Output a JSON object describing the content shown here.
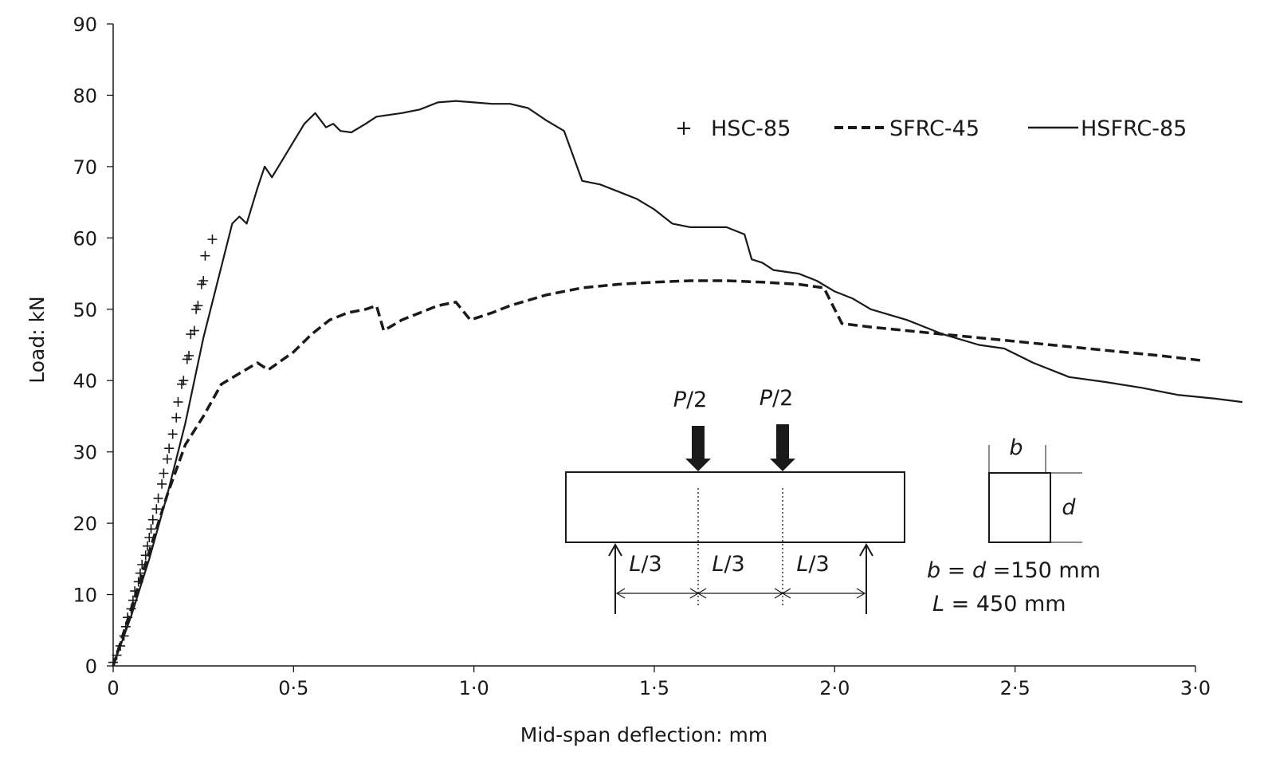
{
  "chart_data": {
    "type": "line",
    "xlabel": "Mid-span deflection: mm",
    "ylabel": "Load: kN",
    "xlim": [
      0,
      3.0
    ],
    "ylim": [
      0,
      90
    ],
    "x_ticks": [
      0,
      0.5,
      1.0,
      1.5,
      2.0,
      2.5,
      3.0
    ],
    "x_tick_labels": [
      "0",
      "0·5",
      "1·0",
      "1·5",
      "2·0",
      "2·5",
      "3·0"
    ],
    "y_ticks": [
      0,
      10,
      20,
      30,
      40,
      50,
      60,
      70,
      80,
      90
    ],
    "y_tick_labels": [
      "0",
      "10",
      "20",
      "30",
      "40",
      "50",
      "60",
      "70",
      "80",
      "90"
    ],
    "grid": false,
    "legend_position": "top-right",
    "series": [
      {
        "name": "HSC-85",
        "style": "markers-plus",
        "points": [
          [
            0.0,
            0.5
          ],
          [
            0.01,
            1.5
          ],
          [
            0.02,
            2.8
          ],
          [
            0.03,
            4.2
          ],
          [
            0.035,
            5.5
          ],
          [
            0.04,
            6.8
          ],
          [
            0.05,
            8.0
          ],
          [
            0.055,
            9.2
          ],
          [
            0.06,
            10.5
          ],
          [
            0.07,
            11.8
          ],
          [
            0.075,
            13.0
          ],
          [
            0.08,
            14.2
          ],
          [
            0.09,
            15.5
          ],
          [
            0.095,
            16.8
          ],
          [
            0.1,
            18.0
          ],
          [
            0.105,
            19.2
          ],
          [
            0.11,
            20.5
          ],
          [
            0.12,
            22.0
          ],
          [
            0.125,
            23.5
          ],
          [
            0.135,
            25.5
          ],
          [
            0.14,
            27.0
          ],
          [
            0.15,
            29.0
          ],
          [
            0.155,
            30.5
          ],
          [
            0.165,
            32.5
          ],
          [
            0.175,
            34.8
          ],
          [
            0.18,
            37.0
          ],
          [
            0.19,
            39.5
          ],
          [
            0.195,
            40.0
          ],
          [
            0.205,
            43.0
          ],
          [
            0.21,
            43.5
          ],
          [
            0.215,
            46.5
          ],
          [
            0.225,
            47.0
          ],
          [
            0.23,
            50.0
          ],
          [
            0.235,
            50.5
          ],
          [
            0.245,
            53.5
          ],
          [
            0.25,
            54.0
          ],
          [
            0.255,
            57.5
          ],
          [
            0.275,
            59.8
          ]
        ]
      },
      {
        "name": "SFRC-45",
        "style": "dashed",
        "points": [
          [
            0.0,
            0.0
          ],
          [
            0.05,
            8.0
          ],
          [
            0.1,
            16.0
          ],
          [
            0.15,
            24.0
          ],
          [
            0.2,
            31.0
          ],
          [
            0.25,
            35.0
          ],
          [
            0.3,
            39.5
          ],
          [
            0.35,
            41.0
          ],
          [
            0.4,
            42.5
          ],
          [
            0.43,
            41.5
          ],
          [
            0.5,
            44.0
          ],
          [
            0.55,
            46.5
          ],
          [
            0.6,
            48.5
          ],
          [
            0.65,
            49.5
          ],
          [
            0.7,
            50.0
          ],
          [
            0.73,
            50.5
          ],
          [
            0.75,
            47.0
          ],
          [
            0.8,
            48.5
          ],
          [
            0.85,
            49.5
          ],
          [
            0.9,
            50.5
          ],
          [
            0.95,
            51.0
          ],
          [
            0.99,
            48.5
          ],
          [
            1.05,
            49.5
          ],
          [
            1.1,
            50.5
          ],
          [
            1.2,
            52.0
          ],
          [
            1.3,
            53.0
          ],
          [
            1.4,
            53.5
          ],
          [
            1.5,
            53.8
          ],
          [
            1.6,
            54.0
          ],
          [
            1.7,
            54.0
          ],
          [
            1.8,
            53.8
          ],
          [
            1.9,
            53.5
          ],
          [
            1.97,
            53.0
          ],
          [
            2.0,
            50.0
          ],
          [
            2.02,
            48.0
          ],
          [
            2.1,
            47.5
          ],
          [
            2.2,
            47.0
          ],
          [
            2.3,
            46.5
          ],
          [
            2.5,
            45.5
          ],
          [
            2.7,
            44.5
          ],
          [
            2.9,
            43.5
          ],
          [
            3.02,
            42.8
          ]
        ]
      },
      {
        "name": "HSFRC-85",
        "style": "solid",
        "points": [
          [
            0.0,
            0.0
          ],
          [
            0.05,
            7.0
          ],
          [
            0.1,
            15.0
          ],
          [
            0.15,
            24.0
          ],
          [
            0.2,
            34.0
          ],
          [
            0.25,
            46.0
          ],
          [
            0.3,
            56.0
          ],
          [
            0.33,
            62.0
          ],
          [
            0.35,
            63.0
          ],
          [
            0.37,
            62.0
          ],
          [
            0.4,
            67.0
          ],
          [
            0.42,
            70.0
          ],
          [
            0.44,
            68.5
          ],
          [
            0.47,
            71.0
          ],
          [
            0.5,
            73.5
          ],
          [
            0.53,
            76.0
          ],
          [
            0.56,
            77.5
          ],
          [
            0.59,
            75.5
          ],
          [
            0.61,
            76.0
          ],
          [
            0.63,
            75.0
          ],
          [
            0.66,
            74.8
          ],
          [
            0.7,
            76.0
          ],
          [
            0.73,
            77.0
          ],
          [
            0.8,
            77.5
          ],
          [
            0.85,
            78.0
          ],
          [
            0.9,
            79.0
          ],
          [
            0.95,
            79.2
          ],
          [
            1.0,
            79.0
          ],
          [
            1.05,
            78.8
          ],
          [
            1.1,
            78.8
          ],
          [
            1.15,
            78.2
          ],
          [
            1.2,
            76.5
          ],
          [
            1.25,
            75.0
          ],
          [
            1.3,
            68.0
          ],
          [
            1.35,
            67.5
          ],
          [
            1.4,
            66.5
          ],
          [
            1.45,
            65.5
          ],
          [
            1.5,
            64.0
          ],
          [
            1.55,
            62.0
          ],
          [
            1.6,
            61.5
          ],
          [
            1.7,
            61.5
          ],
          [
            1.75,
            60.5
          ],
          [
            1.77,
            57.0
          ],
          [
            1.8,
            56.5
          ],
          [
            1.83,
            55.5
          ],
          [
            1.9,
            55.0
          ],
          [
            1.95,
            54.0
          ],
          [
            2.0,
            52.5
          ],
          [
            2.05,
            51.5
          ],
          [
            2.1,
            50.0
          ],
          [
            2.2,
            48.5
          ],
          [
            2.3,
            46.5
          ],
          [
            2.4,
            45.0
          ],
          [
            2.47,
            44.5
          ],
          [
            2.55,
            42.5
          ],
          [
            2.65,
            40.5
          ],
          [
            2.75,
            39.8
          ],
          [
            2.85,
            39.0
          ],
          [
            2.95,
            38.0
          ],
          [
            3.05,
            37.5
          ],
          [
            3.13,
            37.0
          ]
        ]
      }
    ],
    "inset": {
      "load_labels": [
        {
          "num": "P",
          "den": "/2"
        },
        {
          "num": "P",
          "den": "/2"
        }
      ],
      "span_labels": [
        {
          "num": "L",
          "den": "/3"
        },
        {
          "num": "L",
          "den": "/3"
        },
        {
          "num": "L",
          "den": "/3"
        }
      ],
      "section_b": "b",
      "section_d": "d",
      "dims": {
        "line1_b": "b",
        "line1_eq": " = ",
        "line1_d": "d",
        "line1_val": " =150 mm",
        "line2_L": "L",
        "line2_val": " = 450 mm"
      }
    }
  }
}
